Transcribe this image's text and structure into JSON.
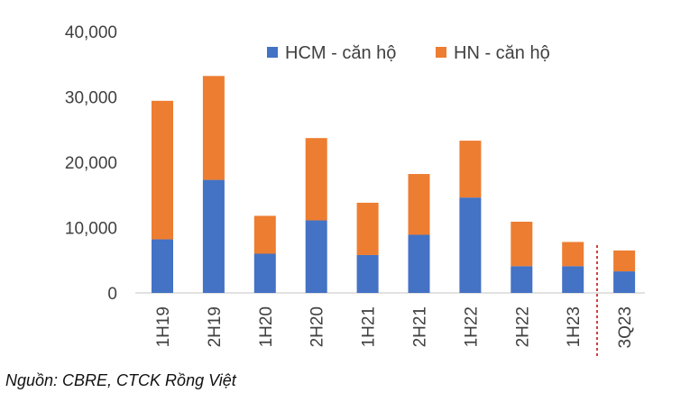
{
  "chart_data": {
    "type": "bar",
    "stacked": true,
    "categories": [
      "1H19",
      "2H19",
      "1H20",
      "2H20",
      "1H21",
      "2H21",
      "1H22",
      "2H22",
      "1H23",
      "3Q23"
    ],
    "series": [
      {
        "name": "HCM - căn hộ",
        "color": "#4472C4",
        "values": [
          8200,
          17300,
          6000,
          11100,
          5800,
          8900,
          14600,
          4100,
          4100,
          3300
        ]
      },
      {
        "name": "HN - căn hộ",
        "color": "#ED7D31",
        "values": [
          21200,
          15900,
          5800,
          12600,
          8000,
          9300,
          8700,
          6800,
          3700,
          3200
        ]
      }
    ],
    "ylim": [
      0,
      40000
    ],
    "yticks": [
      "0",
      "10,000",
      "20,000",
      "30,000",
      "40,000"
    ],
    "ytick_values": [
      0,
      10000,
      20000,
      30000,
      40000
    ],
    "legend_position": "top-right",
    "grid": false,
    "title": "",
    "xlabel": "",
    "ylabel": ""
  },
  "source_note": "Nguồn: CBRE, CTCK Rồng Việt",
  "divider_color": "#C00000"
}
